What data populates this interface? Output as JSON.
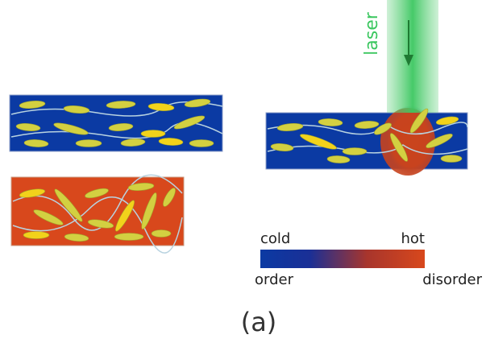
{
  "labels": {
    "laser": "laser",
    "cold": "cold",
    "hot": "hot",
    "order": "order",
    "disorder": "disorder",
    "panel": "(a)"
  }
}
